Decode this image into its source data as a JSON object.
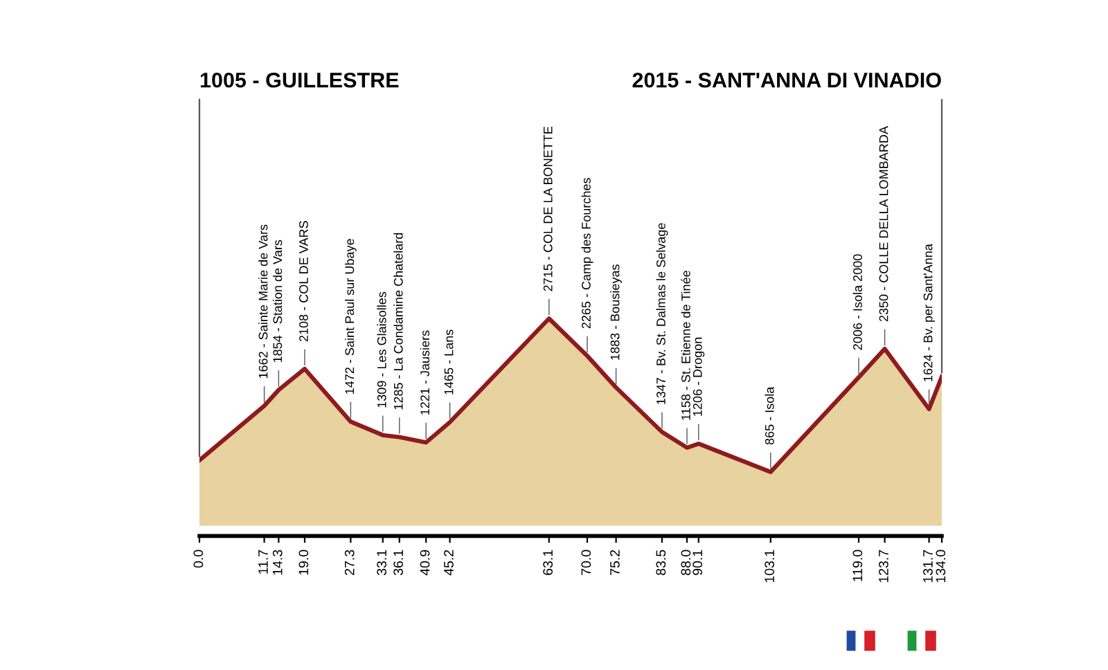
{
  "chart_data": {
    "type": "area",
    "x": [
      0.0,
      11.7,
      14.3,
      19.0,
      27.3,
      33.1,
      36.1,
      40.9,
      45.2,
      63.1,
      70.0,
      75.2,
      83.5,
      88.0,
      90.1,
      103.1,
      119.0,
      123.7,
      131.7,
      134.0
    ],
    "series": [
      {
        "color": "#e8d2a0",
        "values": [
          1005,
          1662,
          1854,
          2108,
          1472,
          1309,
          1285,
          1221,
          1465,
          2715,
          2265,
          1883,
          1347,
          1158,
          1206,
          865,
          2006,
          2350,
          1624,
          2015
        ],
        "value_labels": [
          "1005 - GUILLESTRE",
          "1662 - Sainte Marie de Vars",
          "1854 - Station de Vars",
          "2108 - COL DE VARS",
          "1472 - Saint Paul sur Ubaye",
          "1309 - Les Glaisolles",
          "1285 - La Condamine Chatelard",
          "1221 - Jausiers",
          "1465 - Lans",
          "2715 - COL DE LA BONETTE",
          "2265 - Camp des Fourches",
          "1883 - Bousieyas",
          "1347 - Bv. St. Dalmas le Selvage",
          "1158 - St. Etienne de Tinée",
          "1206 - Drogon",
          "865 - Isola",
          "2006 - Isola 2000",
          "2350 - COLLE DELLA LOMBARDA",
          "1624 - Bv. per Sant'Anna",
          "2015 - SANT'ANNA DI VINADIO"
        ]
      }
    ],
    "xlim": [
      0,
      134
    ],
    "xticks": [
      {
        "value": 0,
        "label": "0.0"
      },
      {
        "value": 11.7,
        "label": "11.7"
      },
      {
        "value": 14.3,
        "label": "14.3"
      },
      {
        "value": 19,
        "label": "19.0"
      },
      {
        "value": 27.3,
        "label": "27.3"
      },
      {
        "value": 33.1,
        "label": "33.1"
      },
      {
        "value": 36.1,
        "label": "36.1"
      },
      {
        "value": 40.9,
        "label": "40.9"
      },
      {
        "value": 45.2,
        "label": "45.2"
      },
      {
        "value": 63.1,
        "label": "63.1"
      },
      {
        "value": 70,
        "label": "70.0"
      },
      {
        "value": 75.2,
        "label": "75.2"
      },
      {
        "value": 83.5,
        "label": "83.5"
      },
      {
        "value": 88,
        "label": "88.0"
      },
      {
        "value": 90.1,
        "label": "90.1"
      },
      {
        "value": 103.1,
        "label": "103.1"
      },
      {
        "value": 119,
        "label": "119.0"
      },
      {
        "value": 123.7,
        "label": "123.7"
      },
      {
        "value": 131.7,
        "label": "131.7"
      },
      {
        "value": 134,
        "label": "134.0"
      }
    ],
    "tick_labels": "x",
    "grid": false
  }
}
